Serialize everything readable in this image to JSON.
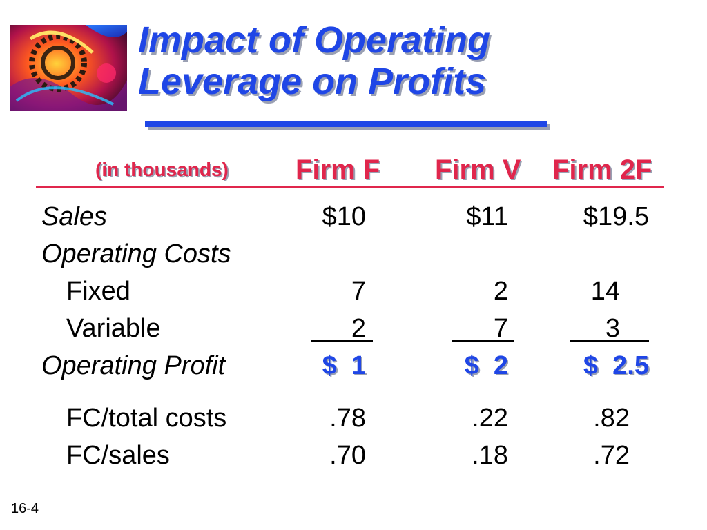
{
  "slide": {
    "title_line1": "Impact of Operating",
    "title_line2": "Leverage on Profits",
    "units_note": "(in thousands)",
    "columns": [
      "Firm F",
      "Firm V",
      "Firm 2F"
    ],
    "rows": {
      "sales": {
        "label": "Sales",
        "values": [
          "$10",
          "$11",
          "$19.5"
        ]
      },
      "operating_costs": {
        "label": "Operating Costs"
      },
      "fixed": {
        "label": "Fixed",
        "values": [
          "7",
          "2",
          "14"
        ]
      },
      "variable": {
        "label": "Variable",
        "values": [
          "2",
          "7",
          "3"
        ]
      },
      "operating_profit": {
        "label": "Operating Profit",
        "values": [
          "$  1",
          "$  2",
          "$  2.5"
        ]
      },
      "fc_total_costs": {
        "label": "FC/total costs",
        "values": [
          ".78",
          ".22",
          ".82"
        ]
      },
      "fc_sales": {
        "label": "FC/sales",
        "values": [
          ".70",
          ".18",
          ".72"
        ]
      }
    },
    "slide_number": "16-4"
  },
  "colors": {
    "title_blue": "#1f46e6",
    "header_red": "#e0264c"
  },
  "icons": {
    "logo": "abstract-gear-artwork"
  }
}
